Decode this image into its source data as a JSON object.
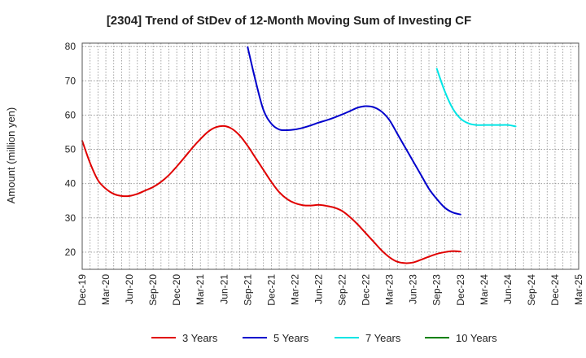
{
  "chart_data": {
    "type": "line",
    "title": "[2304]  Trend of StDev of 12-Month Moving Sum of Investing CF",
    "ylabel": "Amount (million yen)",
    "xlabel": "",
    "ylim": [
      15,
      81
    ],
    "yticks": [
      20,
      30,
      40,
      50,
      60,
      70,
      80
    ],
    "grid": true,
    "legend_position": "bottom",
    "x_tick_labels": [
      "Dec-19",
      "Mar-20",
      "Jun-20",
      "Sep-20",
      "Dec-20",
      "Mar-21",
      "Jun-21",
      "Sep-21",
      "Dec-21",
      "Mar-22",
      "Jun-22",
      "Sep-22",
      "Dec-22",
      "Mar-23",
      "Jun-23",
      "Sep-23",
      "Dec-23",
      "Mar-24",
      "Jun-24",
      "Sep-24",
      "Dec-24",
      "Mar-25"
    ],
    "series": [
      {
        "name": "3 Years",
        "color": "#e00000",
        "start_index": 0,
        "values": [
          52.5,
          46,
          41,
          38.5,
          37,
          36.4,
          36.4,
          37,
          38,
          39,
          40.5,
          42.5,
          45,
          47.7,
          50.5,
          53,
          55.2,
          56.5,
          56.8,
          56,
          54,
          51,
          47.5,
          44,
          40.5,
          37.5,
          35.5,
          34.3,
          33.7,
          33.6,
          33.8,
          33.5,
          33,
          32,
          30.2,
          28,
          25.5,
          23,
          20.5,
          18.5,
          17.2,
          16.8,
          17,
          17.8,
          18.7,
          19.5,
          20,
          20.3,
          20.2
        ]
      },
      {
        "name": "5 Years",
        "color": "#0000cc",
        "start_index": 21,
        "values": [
          79.8,
          70,
          61.5,
          57.5,
          55.8,
          55.6,
          55.8,
          56.3,
          57,
          57.8,
          58.5,
          59.3,
          60.2,
          61.2,
          62.2,
          62.6,
          62.3,
          61,
          58.5,
          54.5,
          50.5,
          46.5,
          42.5,
          38.5,
          35.5,
          33,
          31.6,
          31
        ]
      },
      {
        "name": "7 Years",
        "color": "#00e5e5",
        "start_index": 45,
        "values": [
          73.5,
          67,
          62,
          59,
          57.6,
          57.1,
          57.1,
          57.1,
          57.1,
          57.1,
          56.7
        ]
      },
      {
        "name": "10 Years",
        "color": "#008000",
        "start_index": 0,
        "values": []
      }
    ]
  }
}
